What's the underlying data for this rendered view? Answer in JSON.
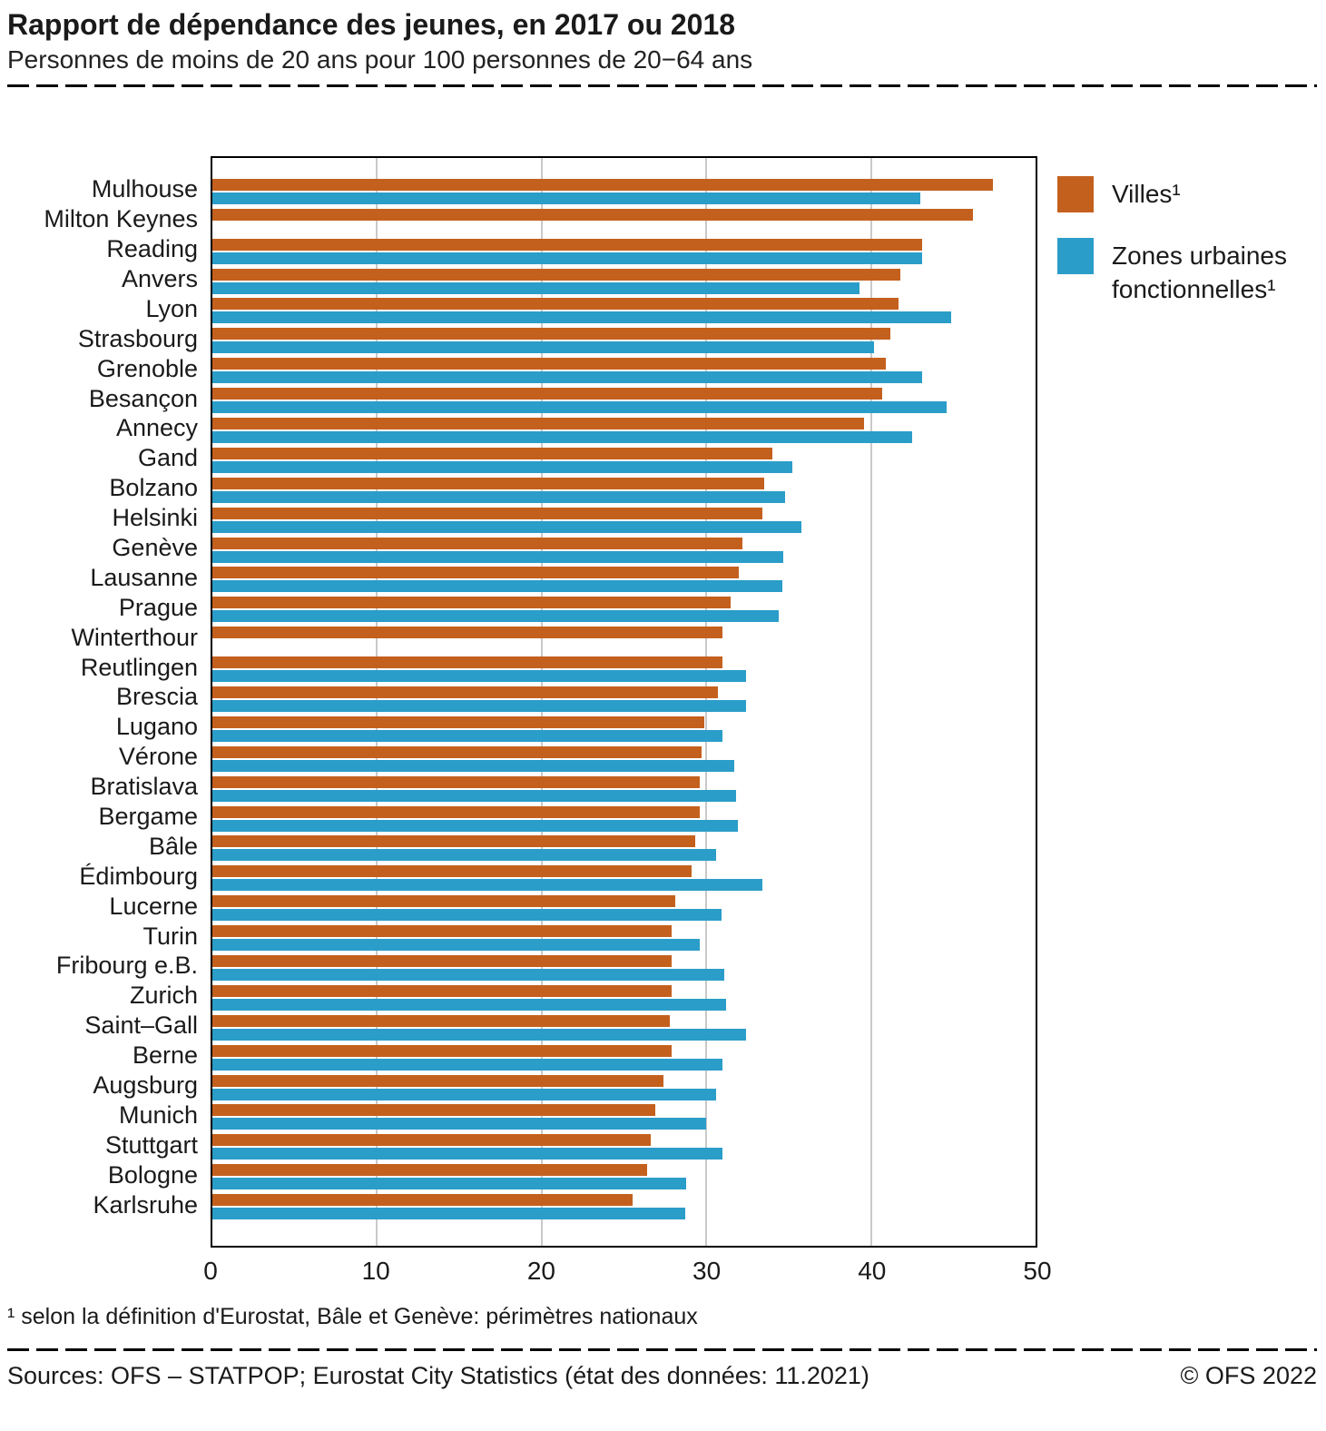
{
  "header": {
    "title": "Rapport de dépendance des jeunes, en 2017 ou 2018",
    "subtitle": "Personnes de moins de 20 ans pour 100 personnes de 20−64 ans"
  },
  "legend": [
    {
      "label": "Villes¹",
      "color": "#c4601d"
    },
    {
      "label": "Zones urbaines fonctionnelles¹",
      "color": "#2b9dc9"
    }
  ],
  "chart_data": {
    "type": "bar",
    "orientation": "horizontal",
    "title": "Rapport de dépendance des jeunes, en 2017 ou 2018",
    "subtitle": "Personnes de moins de 20 ans pour 100 personnes de 20−64 ans",
    "xlabel": "",
    "ylabel": "",
    "xlim": [
      0,
      50
    ],
    "xticks": [
      0,
      10,
      20,
      30,
      40,
      50
    ],
    "grid": "vertical",
    "legend_position": "right-top",
    "categories": [
      "Mulhouse",
      "Milton Keynes",
      "Reading",
      "Anvers",
      "Lyon",
      "Strasbourg",
      "Grenoble",
      "Besançon",
      "Annecy",
      "Gand",
      "Bolzano",
      "Helsinki",
      "Genève",
      "Lausanne",
      "Prague",
      "Winterthour",
      "Reutlingen",
      "Brescia",
      "Lugano",
      "Vérone",
      "Bratislava",
      "Bergame",
      "Bâle",
      "Édimbourg",
      "Lucerne",
      "Turin",
      "Fribourg e.B.",
      "Zurich",
      "Saint–Gall",
      "Berne",
      "Augsburg",
      "Munich",
      "Stuttgart",
      "Bologne",
      "Karlsruhe"
    ],
    "series": [
      {
        "name": "Villes¹",
        "color": "#c4601d",
        "values": [
          47.4,
          46.2,
          43.1,
          41.8,
          41.7,
          41.2,
          40.9,
          40.7,
          39.6,
          34.0,
          33.5,
          33.4,
          32.2,
          32.0,
          31.5,
          31.0,
          31.0,
          30.7,
          29.9,
          29.7,
          29.6,
          29.6,
          29.3,
          29.1,
          28.1,
          27.9,
          27.9,
          27.9,
          27.8,
          27.9,
          27.4,
          26.9,
          26.6,
          26.4,
          25.5
        ]
      },
      {
        "name": "Zones urbaines fonctionnelles¹",
        "color": "#2b9dc9",
        "values": [
          43.0,
          null,
          43.1,
          39.3,
          44.9,
          40.2,
          43.1,
          44.6,
          42.5,
          35.2,
          34.8,
          35.8,
          34.7,
          34.6,
          34.4,
          null,
          32.4,
          32.4,
          31.0,
          31.7,
          31.8,
          31.9,
          30.6,
          33.4,
          30.9,
          29.6,
          31.1,
          31.2,
          32.4,
          31.0,
          30.6,
          30.0,
          31.0,
          28.8,
          28.7
        ]
      }
    ]
  },
  "footnote": "¹   selon la définition d'Eurostat, Bâle et Genève: périmètres nationaux",
  "footer": {
    "sources": "Sources: OFS – STATPOP; Eurostat City Statistics (état des données: 11.2021)",
    "copyright": "© OFS 2022"
  }
}
